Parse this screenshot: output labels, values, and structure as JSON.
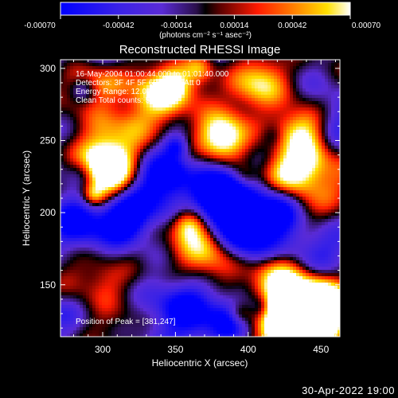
{
  "chart_data": {
    "type": "heatmap",
    "title": "Reconstructed RHESSI Image",
    "xlabel": "Heliocentric X (arcsec)",
    "ylabel": "Heliocentric Y (arcsec)",
    "xlim": [
      271,
      463
    ],
    "ylim": [
      114,
      306
    ],
    "x_ticks": [
      "300",
      "350",
      "400",
      "450"
    ],
    "x_tick_values": [
      300,
      350,
      400,
      450
    ],
    "y_ticks": [
      "150",
      "200",
      "250",
      "300"
    ],
    "y_tick_values": [
      150,
      200,
      250,
      300
    ],
    "colorbar": {
      "range": [
        -0.0007,
        0.0007
      ],
      "tick_labels": [
        "-0.00070",
        "-0.00042",
        "-0.00014",
        "0.00014",
        "0.00042",
        "0.00070"
      ],
      "tick_values": [
        -0.0007,
        -0.00042,
        -0.00014,
        0.00014,
        0.00042,
        0.0007
      ],
      "unit_label": "(photons cm⁻² s⁻¹ asec⁻²)"
    },
    "annotations": [
      "16-May-2004 01:00:44.000 to 01:01:40.000",
      "Detectors: 3F 4F 5F 6F 7F 8F, Att 0",
      "Energy Range: 12.0 - 25.0 keV",
      "Clean     Total counts: 571."
    ],
    "peak_label": "Position of Peak = [381,247]",
    "peak_position": [
      381,
      247
    ],
    "colors": {
      "negative_low": "#0000ff",
      "negative_mid": "#5a2bd6",
      "zero": "#000000",
      "positive_mid": "#ff2a00",
      "positive_high": "#ffffff"
    }
  },
  "footer": {
    "date": "30-Apr-2022 19:00"
  }
}
